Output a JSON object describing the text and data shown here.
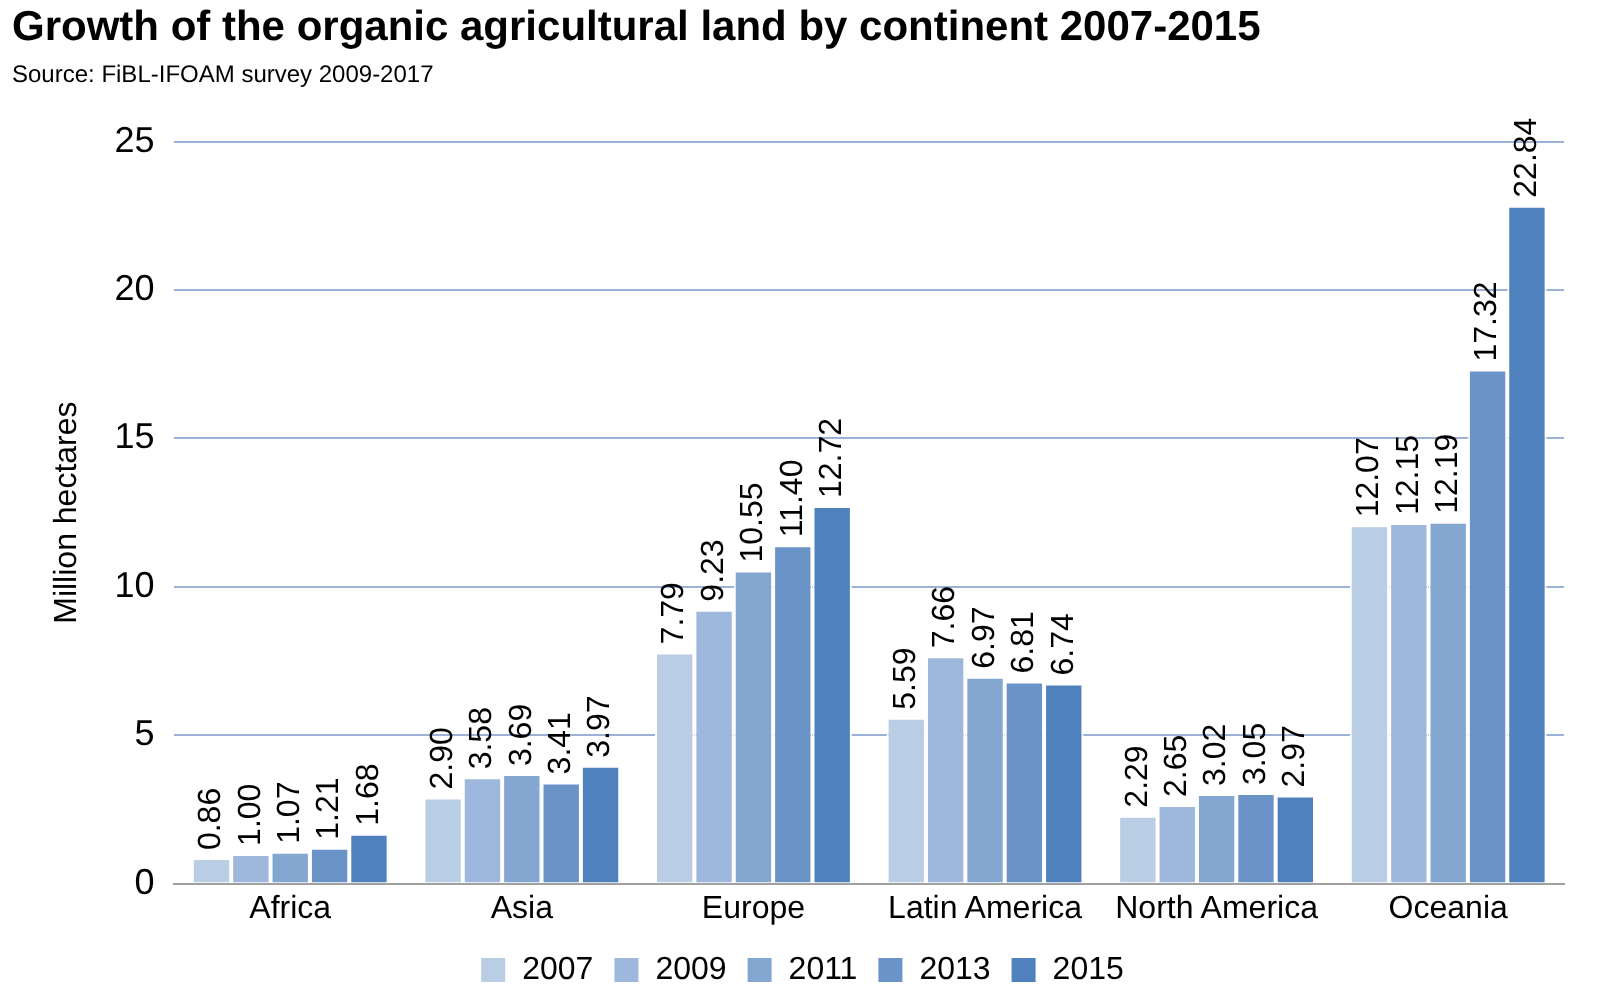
{
  "chart_data": {
    "type": "bar",
    "title": "Growth of the organic agricultural land by continent 2007-2015",
    "subtitle": "Source: FiBL-IFOAM survey 2009-2017",
    "ylabel": "Million hectares",
    "categories": [
      "Africa",
      "Asia",
      "Europe",
      "Latin America",
      "North America",
      "Oceania"
    ],
    "series": [
      {
        "name": "2007",
        "color": "#b9cde5",
        "values": [
          0.86,
          2.9,
          7.79,
          5.59,
          2.29,
          12.07
        ],
        "value_labels": [
          "0.86",
          "2.90",
          "7.79",
          "5.59",
          "2.29",
          "12.07"
        ]
      },
      {
        "name": "2009",
        "color": "#9db8dc",
        "values": [
          1.0,
          3.58,
          9.23,
          7.66,
          2.65,
          12.15
        ],
        "value_labels": [
          "1.00",
          "3.58",
          "9.23",
          "7.66",
          "2.65",
          "12.15"
        ]
      },
      {
        "name": "2011",
        "color": "#84a7d2",
        "values": [
          1.07,
          3.69,
          10.55,
          6.97,
          3.02,
          12.19
        ],
        "value_labels": [
          "1.07",
          "3.69",
          "10.55",
          "6.97",
          "3.02",
          "12.19"
        ]
      },
      {
        "name": "2013",
        "color": "#6a93c8",
        "values": [
          1.21,
          3.41,
          11.4,
          6.81,
          3.05,
          17.32
        ],
        "value_labels": [
          "1.21",
          "3.41",
          "11.40",
          "6.81",
          "3.05",
          "17.32"
        ]
      },
      {
        "name": "2015",
        "color": "#4f81bd",
        "values": [
          1.68,
          3.97,
          12.72,
          6.74,
          2.97,
          22.84
        ],
        "value_labels": [
          "1.68",
          "3.97",
          "12.72",
          "6.74",
          "2.97",
          "22.84"
        ]
      }
    ],
    "ylim": [
      0,
      25
    ],
    "yticks": [
      0,
      5,
      10,
      15,
      20,
      25
    ],
    "grid": "y",
    "legend": "bottom"
  }
}
